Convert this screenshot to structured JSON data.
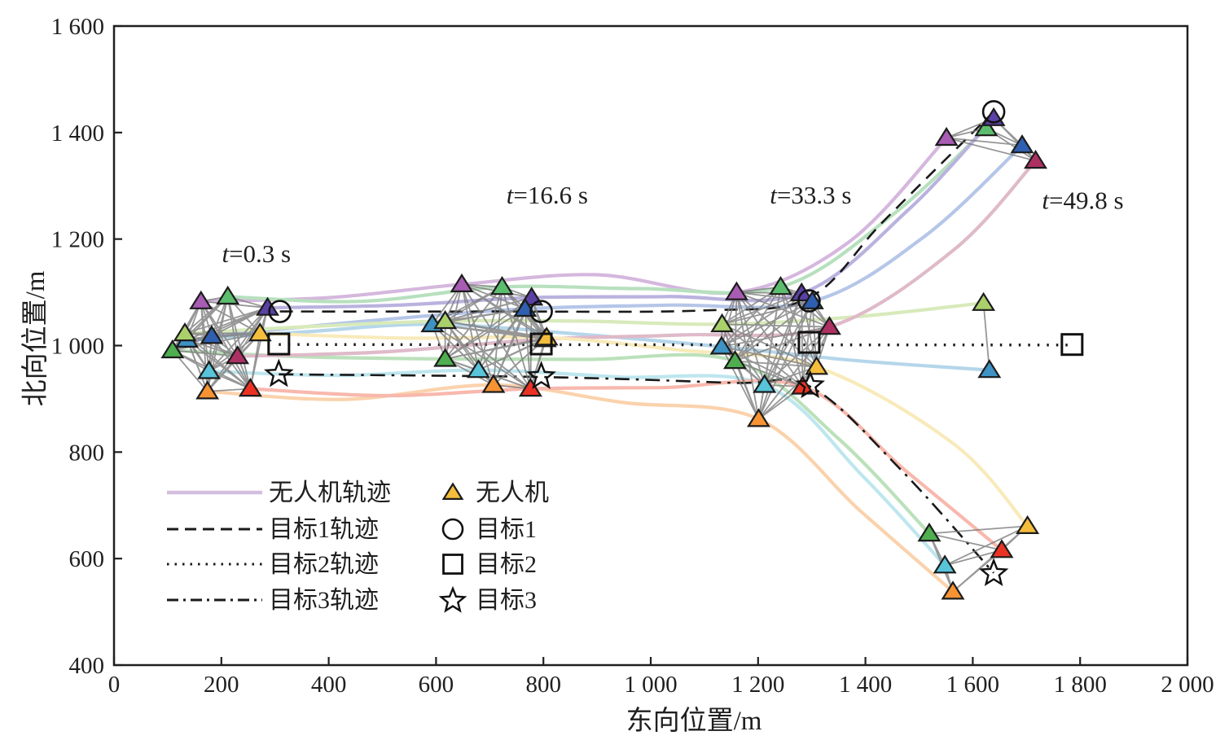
{
  "chart_data": {
    "type": "scatter",
    "title": "",
    "xlabel": "东向位置/m",
    "ylabel": "北向位置/m",
    "xlim": [
      0,
      2000
    ],
    "ylim": [
      400,
      1600
    ],
    "grid": false,
    "xticks": [
      0,
      200,
      400,
      600,
      800,
      1000,
      1200,
      1400,
      1600,
      1800,
      2000
    ],
    "xtick_labels": [
      "0",
      "200",
      "400",
      "600",
      "800",
      "1 000",
      "1 200",
      "1 400",
      "1 600",
      "1 800",
      "2 000"
    ],
    "yticks": [
      400,
      600,
      800,
      1000,
      1200,
      1400,
      1600
    ],
    "ytick_labels": [
      "400",
      "600",
      "800",
      "1 000",
      "1 200",
      "1 400",
      "1 600"
    ],
    "time_annotations": [
      {
        "text": "t=0.3 s",
        "x": 201,
        "y": 1157
      },
      {
        "text": "t=16.6 s",
        "x": 731,
        "y": 1267
      },
      {
        "text": "t=33.3 s",
        "x": 1222,
        "y": 1267
      },
      {
        "text": "t=49.8 s",
        "x": 1729,
        "y": 1257
      }
    ],
    "uavs": [
      {
        "id": "uav-orchid",
        "color": "#a85cb4",
        "traj_color": "#cba6d6",
        "path": [
          [
            162,
            1083
          ],
          [
            400,
            1090
          ],
          [
            648,
            1115
          ],
          [
            900,
            1133
          ],
          [
            1160,
            1100
          ],
          [
            1370,
            1195
          ],
          [
            1551,
            1390
          ]
        ]
      },
      {
        "id": "uav-green",
        "color": "#5dbd6e",
        "traj_color": "#a6d9ae",
        "path": [
          [
            212,
            1092
          ],
          [
            460,
            1083
          ],
          [
            723,
            1110
          ],
          [
            980,
            1107
          ],
          [
            1242,
            1110
          ],
          [
            1450,
            1245
          ],
          [
            1625,
            1408
          ]
        ]
      },
      {
        "id": "uav-violet",
        "color": "#5a41a5",
        "traj_color": "#a9a0d6",
        "path": [
          [
            286,
            1071
          ],
          [
            530,
            1076
          ],
          [
            778,
            1090
          ],
          [
            1030,
            1092
          ],
          [
            1281,
            1098
          ],
          [
            1480,
            1255
          ],
          [
            1639,
            1427
          ]
        ]
      },
      {
        "id": "uav-blue",
        "color": "#2e5fb0",
        "traj_color": "#a3b8e3",
        "path": [
          [
            182,
            1018
          ],
          [
            470,
            1046
          ],
          [
            766,
            1069
          ],
          [
            1030,
            1076
          ],
          [
            1301,
            1083
          ],
          [
            1510,
            1205
          ],
          [
            1692,
            1376
          ]
        ]
      },
      {
        "id": "uav-steelblue",
        "color": "#3e92c4",
        "traj_color": "#a3cde5",
        "path": [
          [
            136,
            1011
          ],
          [
            360,
            1026
          ],
          [
            593,
            1040
          ],
          [
            860,
            1022
          ],
          [
            1132,
            998
          ],
          [
            1380,
            972
          ],
          [
            1631,
            954
          ]
        ]
      },
      {
        "id": "uav-lightgreen",
        "color": "#a9d06a",
        "traj_color": "#cfe5ab",
        "path": [
          [
            132,
            1023
          ],
          [
            370,
            1036
          ],
          [
            617,
            1046
          ],
          [
            870,
            1046
          ],
          [
            1133,
            1040
          ],
          [
            1380,
            1054
          ],
          [
            1620,
            1080
          ]
        ]
      },
      {
        "id": "uav-darkgreen",
        "color": "#4fae4f",
        "traj_color": "#abdaab",
        "path": [
          [
            109,
            991
          ],
          [
            350,
            979
          ],
          [
            617,
            975
          ],
          [
            880,
            974
          ],
          [
            1157,
            971
          ],
          [
            1350,
            825
          ],
          [
            1519,
            647
          ]
        ]
      },
      {
        "id": "uav-maroon",
        "color": "#ad3063",
        "traj_color": "#d8a9bc",
        "path": [
          [
            230,
            980
          ],
          [
            500,
            988
          ],
          [
            803,
            1012
          ],
          [
            1060,
            1020
          ],
          [
            1333,
            1035
          ],
          [
            1565,
            1180
          ],
          [
            1717,
            1347
          ]
        ]
      },
      {
        "id": "uav-yellow",
        "color": "#f4bd3c",
        "traj_color": "#f7e5a9",
        "path": [
          [
            272,
            1023
          ],
          [
            540,
            1014
          ],
          [
            806,
            1015
          ],
          [
            1050,
            992
          ],
          [
            1309,
            960
          ],
          [
            1565,
            815
          ],
          [
            1702,
            661
          ]
        ]
      },
      {
        "id": "uav-cyan",
        "color": "#57c4da",
        "traj_color": "#aee0ea",
        "path": [
          [
            177,
            952
          ],
          [
            420,
            944
          ],
          [
            679,
            954
          ],
          [
            940,
            941
          ],
          [
            1212,
            926
          ],
          [
            1395,
            755
          ],
          [
            1548,
            587
          ]
        ]
      },
      {
        "id": "uav-orange",
        "color": "#f79333",
        "traj_color": "#fac898",
        "path": [
          [
            174,
            914
          ],
          [
            430,
            899
          ],
          [
            707,
            926
          ],
          [
            950,
            893
          ],
          [
            1201,
            862
          ],
          [
            1390,
            690
          ],
          [
            1563,
            538
          ]
        ]
      },
      {
        "id": "uav-red",
        "color": "#ec3323",
        "traj_color": "#f7a799",
        "path": [
          [
            254,
            919
          ],
          [
            510,
            906
          ],
          [
            776,
            919
          ],
          [
            1020,
            921
          ],
          [
            1283,
            923
          ],
          [
            1475,
            765
          ],
          [
            1654,
            616
          ]
        ]
      }
    ],
    "link_groups": [
      {
        "time_index": 0,
        "members": [
          0,
          1,
          2,
          3,
          4,
          5,
          6,
          7,
          8,
          9,
          10,
          11
        ]
      },
      {
        "time_index": 1,
        "members": [
          0,
          1,
          2,
          3,
          4,
          5,
          6,
          7,
          8,
          9,
          10,
          11
        ]
      },
      {
        "time_index": 2,
        "members": [
          0,
          1,
          2,
          3,
          4,
          5,
          6,
          7,
          8,
          9,
          10,
          11
        ]
      },
      {
        "time_index": 3,
        "members": [
          0,
          1,
          2,
          3,
          7
        ]
      },
      {
        "time_index": 3,
        "members": [
          4,
          5
        ]
      },
      {
        "time_index": 3,
        "members": [
          6,
          8,
          9,
          10,
          11
        ]
      }
    ],
    "targets": [
      {
        "id": "target-1",
        "label": "目标1",
        "marker": "circle",
        "line_style": "dashed",
        "line_path": [
          [
            309,
            1064
          ],
          [
            700,
            1064
          ],
          [
            1100,
            1066
          ],
          [
            1295,
            1090
          ],
          [
            1435,
            1235
          ],
          [
            1639,
            1439
          ]
        ],
        "marker_points": [
          [
            309,
            1064
          ],
          [
            796,
            1064
          ],
          [
            1295,
            1084
          ],
          [
            1639,
            1439
          ]
        ]
      },
      {
        "id": "target-2",
        "label": "目标2",
        "marker": "square",
        "line_style": "dotted",
        "line_path": [
          [
            307,
            1002
          ],
          [
            1785,
            1001
          ]
        ],
        "marker_points": [
          [
            307,
            1003
          ],
          [
            796,
            1003
          ],
          [
            1295,
            1006
          ],
          [
            1785,
            1002
          ]
        ]
      },
      {
        "id": "target-3",
        "label": "目标3",
        "marker": "star",
        "line_style": "dashdot",
        "line_path": [
          [
            307,
            946
          ],
          [
            796,
            941
          ],
          [
            1150,
            930
          ],
          [
            1297,
            923
          ],
          [
            1465,
            768
          ],
          [
            1639,
            573
          ]
        ],
        "marker_points": [
          [
            307,
            946
          ],
          [
            796,
            942
          ],
          [
            1297,
            925
          ],
          [
            1639,
            572
          ]
        ]
      }
    ],
    "legend": {
      "line_items": [
        {
          "style": "solid",
          "color": "#d4bede",
          "label": "无人机轨迹"
        },
        {
          "style": "dashed",
          "color": "#1a1a1a",
          "label": "目标1轨迹"
        },
        {
          "style": "dotted",
          "color": "#1a1a1a",
          "label": "目标2轨迹"
        },
        {
          "style": "dashdot",
          "color": "#1a1a1a",
          "label": "目标3轨迹"
        }
      ],
      "marker_items": [
        {
          "marker": "triangle",
          "fill": "#f4bd3c",
          "label": "无人机"
        },
        {
          "marker": "circle",
          "fill": "none",
          "label": "目标1"
        },
        {
          "marker": "square",
          "fill": "none",
          "label": "目标2"
        },
        {
          "marker": "star",
          "fill": "none",
          "label": "目标3"
        }
      ]
    },
    "colors": {
      "axis": "#1f1f1f",
      "links": "#7d7d7d"
    }
  }
}
